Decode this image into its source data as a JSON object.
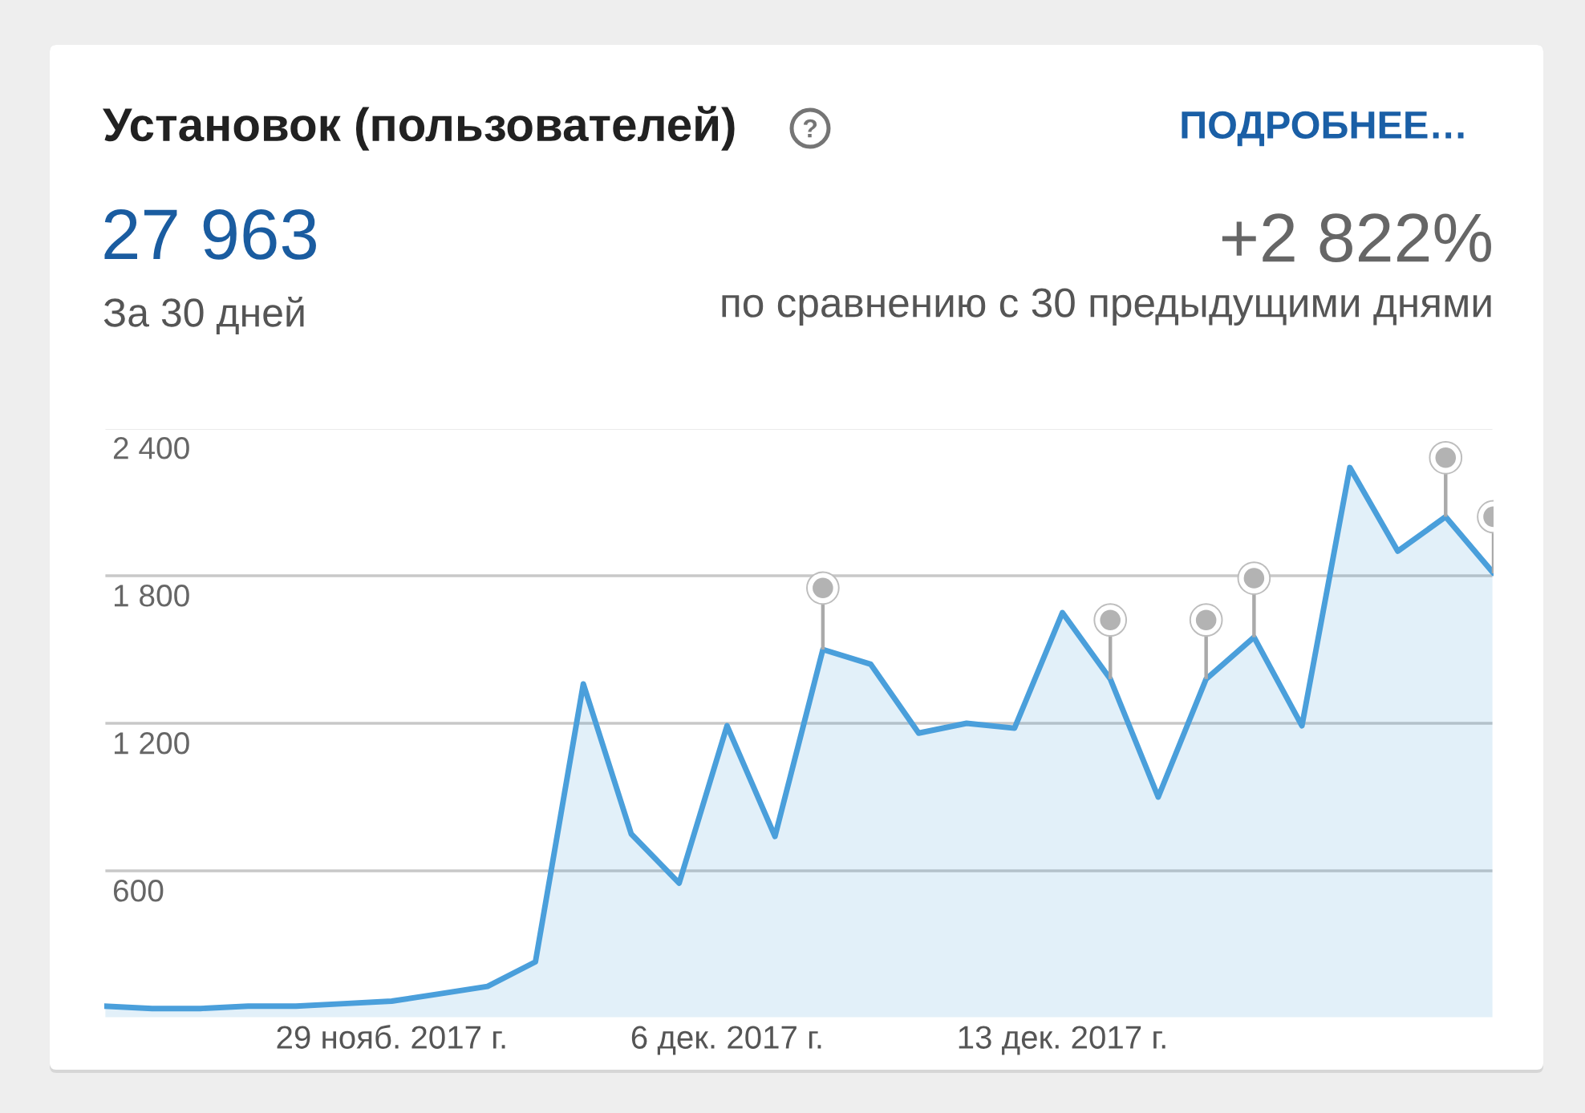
{
  "chart_data": {
    "type": "area",
    "title": "Установок (пользователей)",
    "annotations": [
      "ПОДРОБНЕЕ…",
      "27 963",
      "За 30 дней",
      "+2 822%",
      "по сравнению с 30 предыдущими днями"
    ],
    "x": [
      "2017-11-23",
      "2017-11-24",
      "2017-11-25",
      "2017-11-26",
      "2017-11-27",
      "2017-11-28",
      "2017-11-29",
      "2017-11-30",
      "2017-12-01",
      "2017-12-02",
      "2017-12-03",
      "2017-12-04",
      "2017-12-05",
      "2017-12-06",
      "2017-12-07",
      "2017-12-08",
      "2017-12-09",
      "2017-12-10",
      "2017-12-11",
      "2017-12-12",
      "2017-12-13",
      "2017-12-14",
      "2017-12-15",
      "2017-12-16",
      "2017-12-17",
      "2017-12-18",
      "2017-12-19",
      "2017-12-20",
      "2017-12-21",
      "2017-12-22"
    ],
    "series": [
      {
        "color": "#4a9fdb",
        "values": [
          50,
          40,
          40,
          50,
          50,
          60,
          70,
          100,
          130,
          230,
          1360,
          750,
          550,
          1190,
          740,
          1500,
          1440,
          1160,
          1200,
          1180,
          1650,
          1380,
          900,
          1380,
          1550,
          1190,
          2240,
          1900,
          2040,
          1810
        ]
      },
      {
        "type": "scatter",
        "color": "#b3b3b3",
        "marker": "circle",
        "x": [
          "2017-12-08",
          "2017-12-14",
          "2017-12-16",
          "2017-12-17",
          "2017-12-21",
          "2017-12-22"
        ],
        "values": [
          1750,
          1620,
          1620,
          1790,
          2280,
          2040
        ],
        "errors": [
          [
            1500,
            1750
          ],
          [
            1380,
            1620
          ],
          [
            1380,
            1620
          ],
          [
            1550,
            1790
          ],
          [
            2040,
            2280
          ],
          [
            1810,
            2040
          ]
        ]
      }
    ],
    "xlim": [
      "2017-11-23",
      "2017-12-22"
    ],
    "xticks": [
      {
        "value": "2017-11-29",
        "label": "29 нояб. 2017 г."
      },
      {
        "value": "2017-12-06",
        "label": "6 дек. 2017 г."
      },
      {
        "value": "2017-12-13",
        "label": "13 дек. 2017 г."
      }
    ],
    "ylim": [
      0,
      2400
    ],
    "yticks": [
      600,
      {
        "value": 1200,
        "label": "1 200"
      },
      {
        "value": 1800,
        "label": "1 800"
      },
      {
        "value": 2400,
        "label": "2 400"
      }
    ],
    "grid": "y"
  }
}
